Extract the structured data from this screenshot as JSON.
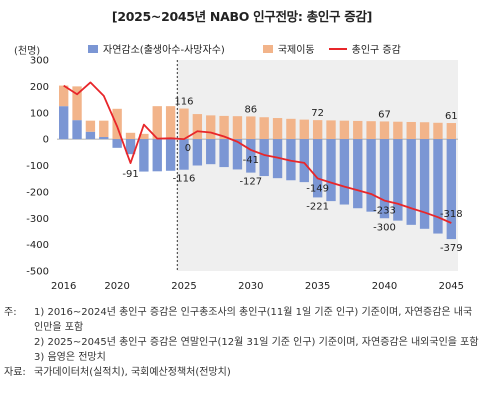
{
  "chart_data": {
    "type": "bar",
    "title": "[2025~2045년 NABO 인구전망: 총인구 증감]",
    "unit": "(천명)",
    "x": [
      2016,
      2017,
      2018,
      2019,
      2020,
      2021,
      2022,
      2023,
      2024,
      2025,
      2026,
      2027,
      2028,
      2029,
      2030,
      2031,
      2032,
      2033,
      2034,
      2035,
      2036,
      2037,
      2038,
      2039,
      2040,
      2041,
      2042,
      2043,
      2044,
      2045
    ],
    "xticks": [
      2016,
      2020,
      2025,
      2030,
      2035,
      2040,
      2045
    ],
    "ylim": [
      -500,
      300
    ],
    "yticks": [
      300,
      200,
      100,
      0,
      -100,
      -200,
      -300,
      -400,
      -500
    ],
    "series": [
      {
        "name": "자연감소(출생아수-사망자수)",
        "kind": "bar",
        "color": "#7b96d4",
        "values": [
          125,
          72,
          28,
          8,
          -33,
          -57,
          -123,
          -122,
          -120,
          -116,
          -100,
          -95,
          -106,
          -115,
          -127,
          -140,
          -148,
          -156,
          -163,
          -221,
          -235,
          -248,
          -262,
          -275,
          -300,
          -309,
          -325,
          -340,
          -358,
          -379
        ]
      },
      {
        "name": "국제이동",
        "kind": "bar",
        "color": "#f2b48a",
        "values": [
          78,
          128,
          42,
          62,
          115,
          24,
          20,
          125,
          125,
          116,
          95,
          90,
          88,
          87,
          86,
          83,
          80,
          77,
          74,
          72,
          71,
          70,
          69,
          68,
          67,
          66,
          65,
          64,
          62,
          61
        ]
      },
      {
        "name": "총인구 증감",
        "kind": "line",
        "color": "#e8262a",
        "values": [
          203,
          170,
          215,
          164,
          48,
          -91,
          55,
          2,
          3,
          0,
          30,
          25,
          10,
          -10,
          -41,
          -60,
          -70,
          -82,
          -90,
          -149,
          -165,
          -180,
          -194,
          -208,
          -233,
          -245,
          -262,
          -278,
          -296,
          -318
        ]
      }
    ],
    "annotations": {
      "bar_top": [
        {
          "x": 2025,
          "text": "116"
        },
        {
          "x": 2030,
          "text": "86"
        },
        {
          "x": 2035,
          "text": "72"
        },
        {
          "x": 2040,
          "text": "67"
        },
        {
          "x": 2045,
          "text": "61"
        }
      ],
      "line": [
        {
          "x": 2021,
          "text": "-91"
        },
        {
          "x": 2025,
          "text": "0"
        },
        {
          "x": 2030,
          "text": "-41"
        },
        {
          "x": 2035,
          "text": "-149"
        },
        {
          "x": 2040,
          "text": "-233"
        },
        {
          "x": 2045,
          "text": "-318"
        }
      ],
      "bar_bottom": [
        {
          "x": 2025,
          "text": "-116"
        },
        {
          "x": 2030,
          "text": "-127"
        },
        {
          "x": 2035,
          "text": "-221"
        },
        {
          "x": 2040,
          "text": "-300"
        },
        {
          "x": 2045,
          "text": "-379"
        }
      ]
    },
    "shaded_from": 2025,
    "divider_at": 2025
  },
  "notes": {
    "lead": "주:",
    "items": [
      {
        "num": "1)",
        "text": "2016~2024년 총인구 증감은 인구총조사의 총인구(11월 1일 기준 인구) 기준이며, 자연증감은 내국인만을 포함"
      },
      {
        "num": "2)",
        "text": "2025~2045년 총인구 증감은 연말인구(12월 31일 기준 인구) 기준이며, 자연증감은 내외국인을 포함"
      },
      {
        "num": "3)",
        "text": "음영은 전망치"
      }
    ]
  },
  "source": {
    "lead": "자료:",
    "text": "국가데이터처(실적치), 국회예산정책처(전망치)"
  }
}
